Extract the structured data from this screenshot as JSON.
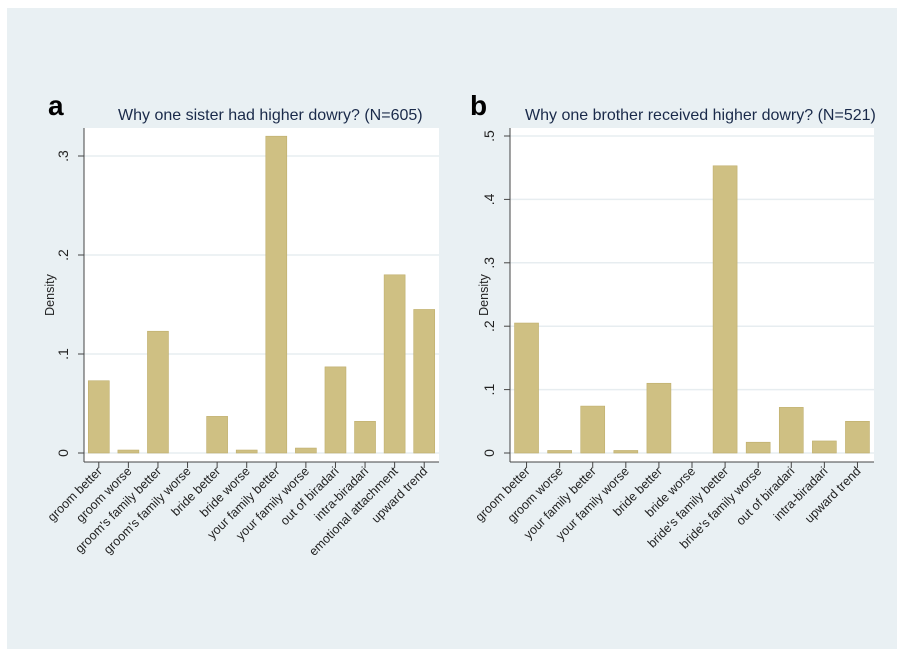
{
  "chart_data": [
    {
      "type": "bar",
      "panel_letter": "a",
      "title": "Why one sister had higher dowry? (N=605)",
      "ylabel": "Density",
      "ylim": [
        0,
        0.32
      ],
      "yticks": [
        0,
        0.1,
        0.2,
        0.3
      ],
      "ytick_labels": [
        "0",
        ".1",
        ".2",
        ".3"
      ],
      "grid": true,
      "bar_color": "#cfc083",
      "categories": [
        "groom better",
        "groom worse",
        "groom's family better",
        "groom's family worse",
        "bride better",
        "bride worse",
        "your family better",
        "your family worse",
        "out of biradari",
        "intra-biradari",
        "emotional attachment",
        "upward trend"
      ],
      "values": [
        0.073,
        0.003,
        0.123,
        0.0,
        0.037,
        0.003,
        0.32,
        0.005,
        0.087,
        0.032,
        0.18,
        0.145
      ]
    },
    {
      "type": "bar",
      "panel_letter": "b",
      "title": "Why one brother received higher dowry? (N=521)",
      "ylabel": "Density",
      "ylim": [
        0,
        0.5
      ],
      "yticks": [
        0,
        0.1,
        0.2,
        0.3,
        0.4,
        0.5
      ],
      "ytick_labels": [
        "0",
        ".1",
        ".2",
        ".3",
        ".4",
        ".5"
      ],
      "grid": true,
      "bar_color": "#cfc083",
      "categories": [
        "groom better",
        "groom worse",
        "your family better",
        "your family worse",
        "bride better",
        "bride worse",
        "bride's family better",
        "bride's family worse",
        "out of biradari",
        "intra-biradari",
        "upward trend"
      ],
      "values": [
        0.205,
        0.004,
        0.074,
        0.004,
        0.11,
        0.0,
        0.453,
        0.017,
        0.072,
        0.019,
        0.05
      ]
    }
  ]
}
